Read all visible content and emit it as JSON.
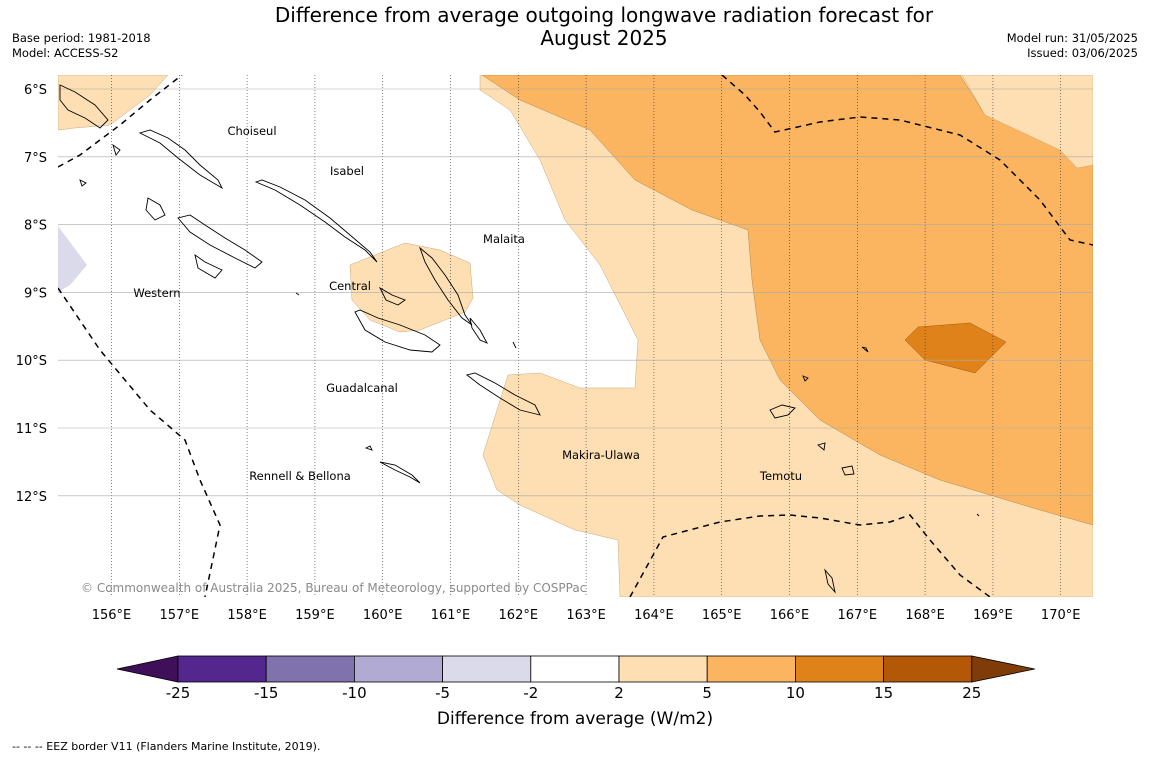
{
  "header": {
    "title_line1": "Difference from average outgoing longwave radiation forecast for",
    "title_line2": "August 2025",
    "base_period": "Base period: 1981-2018",
    "model": "Model: ACCESS-S2",
    "model_run": "Model run: 31/05/2025",
    "issued": "Issued: 03/06/2025"
  },
  "map": {
    "lat_labels": [
      "6°S",
      "7°S",
      "8°S",
      "9°S",
      "10°S",
      "11°S",
      "12°S"
    ],
    "lon_labels": [
      "156°E",
      "157°E",
      "158°E",
      "159°E",
      "160°E",
      "161°E",
      "162°E",
      "163°E",
      "164°E",
      "165°E",
      "166°E",
      "167°E",
      "168°E",
      "169°E",
      "170°E"
    ],
    "provinces": [
      "Choiseul",
      "Isabel",
      "Malaita",
      "Western",
      "Central",
      "Guadalcanal",
      "Makira-Ulawa",
      "Rennell & Bellona",
      "Temotu"
    ],
    "copyright": "© Commonwealth of Australia 2025, Bureau of Meteorology, supported by COSPPac"
  },
  "colorbar": {
    "ticks": [
      "-25",
      "-15",
      "-10",
      "-5",
      "-2",
      "2",
      "5",
      "10",
      "15",
      "25"
    ],
    "colors": [
      "#3f0f5a",
      "#54278f",
      "#8072ac",
      "#b1aad2",
      "#dadaeb",
      "#ffffff",
      "#fddfb3",
      "#fbb560",
      "#e0821a",
      "#b35807",
      "#7f3b08"
    ],
    "title": "Difference from average (W/m2)"
  },
  "footer": "--  --  -- EEZ border V11 (Flanders Marine Institute, 2019)."
}
